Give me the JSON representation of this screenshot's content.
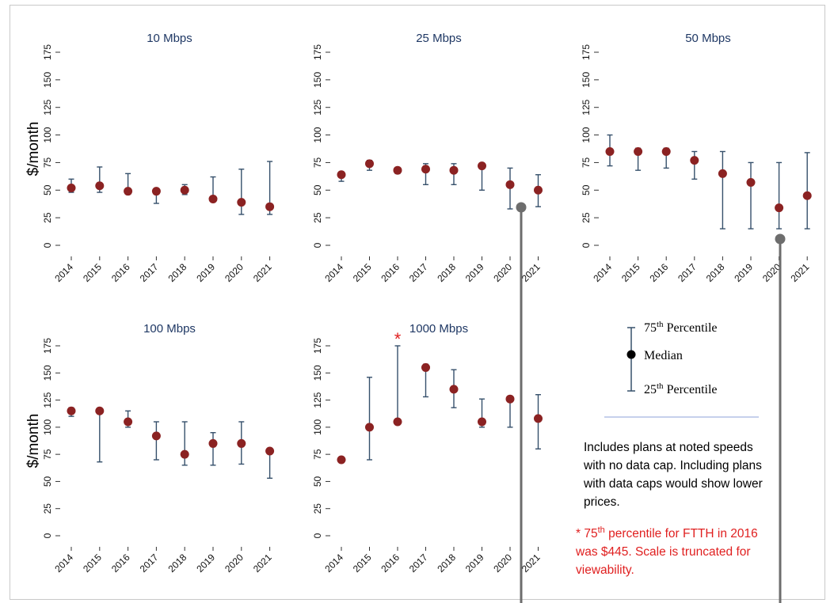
{
  "colors": {
    "marker": "#8b2222",
    "whisker": "#36506b",
    "title": "#1f3864",
    "footnote": "#e02020",
    "rule": "#8ea0d8",
    "pointer": "#6d6d6d"
  },
  "legend": {
    "p75_pre": "75",
    "p75_sup": "th",
    "p75_post": " Percentile",
    "median": "Median",
    "p25_pre": "25",
    "p25_sup": "th",
    "p25_post": " Percentile"
  },
  "note": {
    "lines": [
      "Includes plans at noted speeds",
      "with no data cap. Including plans",
      "with data caps would show lower",
      "prices."
    ]
  },
  "footnote": {
    "star": "*",
    "line1_pre": "* 75",
    "line1_sup": "th",
    "line1_post": " percentile for FTTH in 2016",
    "line2": "was $445. Scale is truncated for",
    "line3": "viewability."
  },
  "chart_data": [
    {
      "type": "scatter",
      "title": "10 Mbps",
      "ylabel": "$/month",
      "xlabel": "",
      "categories": [
        "2014",
        "2015",
        "2016",
        "2017",
        "2018",
        "2019",
        "2020",
        "2021"
      ],
      "y_ticks": [
        0,
        25,
        50,
        75,
        100,
        125,
        150,
        175
      ],
      "ylim": [
        0,
        175
      ],
      "series": [
        {
          "name": "Median",
          "values": [
            52,
            54,
            49,
            49,
            50,
            42,
            39,
            35
          ]
        },
        {
          "name": "25th Percentile",
          "values": [
            48,
            48,
            48,
            38,
            46,
            42,
            28,
            28
          ]
        },
        {
          "name": "75th Percentile",
          "values": [
            60,
            71,
            65,
            49,
            55,
            62,
            69,
            76
          ]
        }
      ]
    },
    {
      "type": "scatter",
      "title": "25 Mbps",
      "ylabel": "",
      "xlabel": "",
      "categories": [
        "2014",
        "2015",
        "2016",
        "2017",
        "2018",
        "2019",
        "2020",
        "2021"
      ],
      "y_ticks": [
        0,
        25,
        50,
        75,
        100,
        125,
        150,
        175
      ],
      "ylim": [
        0,
        175
      ],
      "series": [
        {
          "name": "Median",
          "values": [
            64,
            74,
            68,
            69,
            68,
            72,
            55,
            50
          ]
        },
        {
          "name": "25th Percentile",
          "values": [
            58,
            68,
            65,
            55,
            55,
            50,
            33,
            35
          ]
        },
        {
          "name": "75th Percentile",
          "values": [
            66,
            77,
            70,
            74,
            74,
            74,
            70,
            64
          ]
        }
      ]
    },
    {
      "type": "scatter",
      "title": "50 Mbps",
      "ylabel": "",
      "xlabel": "",
      "categories": [
        "2014",
        "2015",
        "2016",
        "2017",
        "2018",
        "2019",
        "2020",
        "2021"
      ],
      "y_ticks": [
        0,
        25,
        50,
        75,
        100,
        125,
        150,
        175
      ],
      "ylim": [
        0,
        175
      ],
      "series": [
        {
          "name": "Median",
          "values": [
            85,
            85,
            85,
            77,
            65,
            57,
            34,
            45
          ]
        },
        {
          "name": "25th Percentile",
          "values": [
            72,
            68,
            70,
            60,
            15,
            15,
            15,
            15
          ]
        },
        {
          "name": "75th Percentile",
          "values": [
            100,
            88,
            88,
            85,
            85,
            75,
            75,
            84
          ]
        }
      ]
    },
    {
      "type": "scatter",
      "title": "100 Mbps",
      "ylabel": "$/month",
      "xlabel": "",
      "categories": [
        "2014",
        "2015",
        "2016",
        "2017",
        "2018",
        "2019",
        "2020",
        "2021"
      ],
      "y_ticks": [
        0,
        25,
        50,
        75,
        100,
        125,
        150,
        175
      ],
      "ylim": [
        0,
        175
      ],
      "series": [
        {
          "name": "Median",
          "values": [
            115,
            115,
            105,
            92,
            75,
            85,
            85,
            78
          ]
        },
        {
          "name": "25th Percentile",
          "values": [
            110,
            68,
            100,
            70,
            65,
            65,
            66,
            53
          ]
        },
        {
          "name": "75th Percentile",
          "values": [
            118,
            117,
            115,
            105,
            105,
            95,
            105,
            80
          ]
        }
      ]
    },
    {
      "type": "scatter",
      "title": "1000 Mbps",
      "ylabel": "",
      "xlabel": "",
      "categories": [
        "2014",
        "2015",
        "2016",
        "2017",
        "2018",
        "2019",
        "2020",
        "2021"
      ],
      "y_ticks": [
        0,
        25,
        50,
        75,
        100,
        125,
        150,
        175
      ],
      "ylim": [
        0,
        175
      ],
      "series": [
        {
          "name": "Median",
          "values": [
            70,
            100,
            105,
            155,
            135,
            105,
            126,
            108
          ]
        },
        {
          "name": "25th Percentile",
          "values": [
            70,
            70,
            105,
            128,
            118,
            100,
            100,
            80
          ]
        },
        {
          "name": "75th Percentile",
          "values": [
            70,
            146,
            175,
            158,
            153,
            126,
            126,
            130
          ]
        }
      ]
    }
  ]
}
